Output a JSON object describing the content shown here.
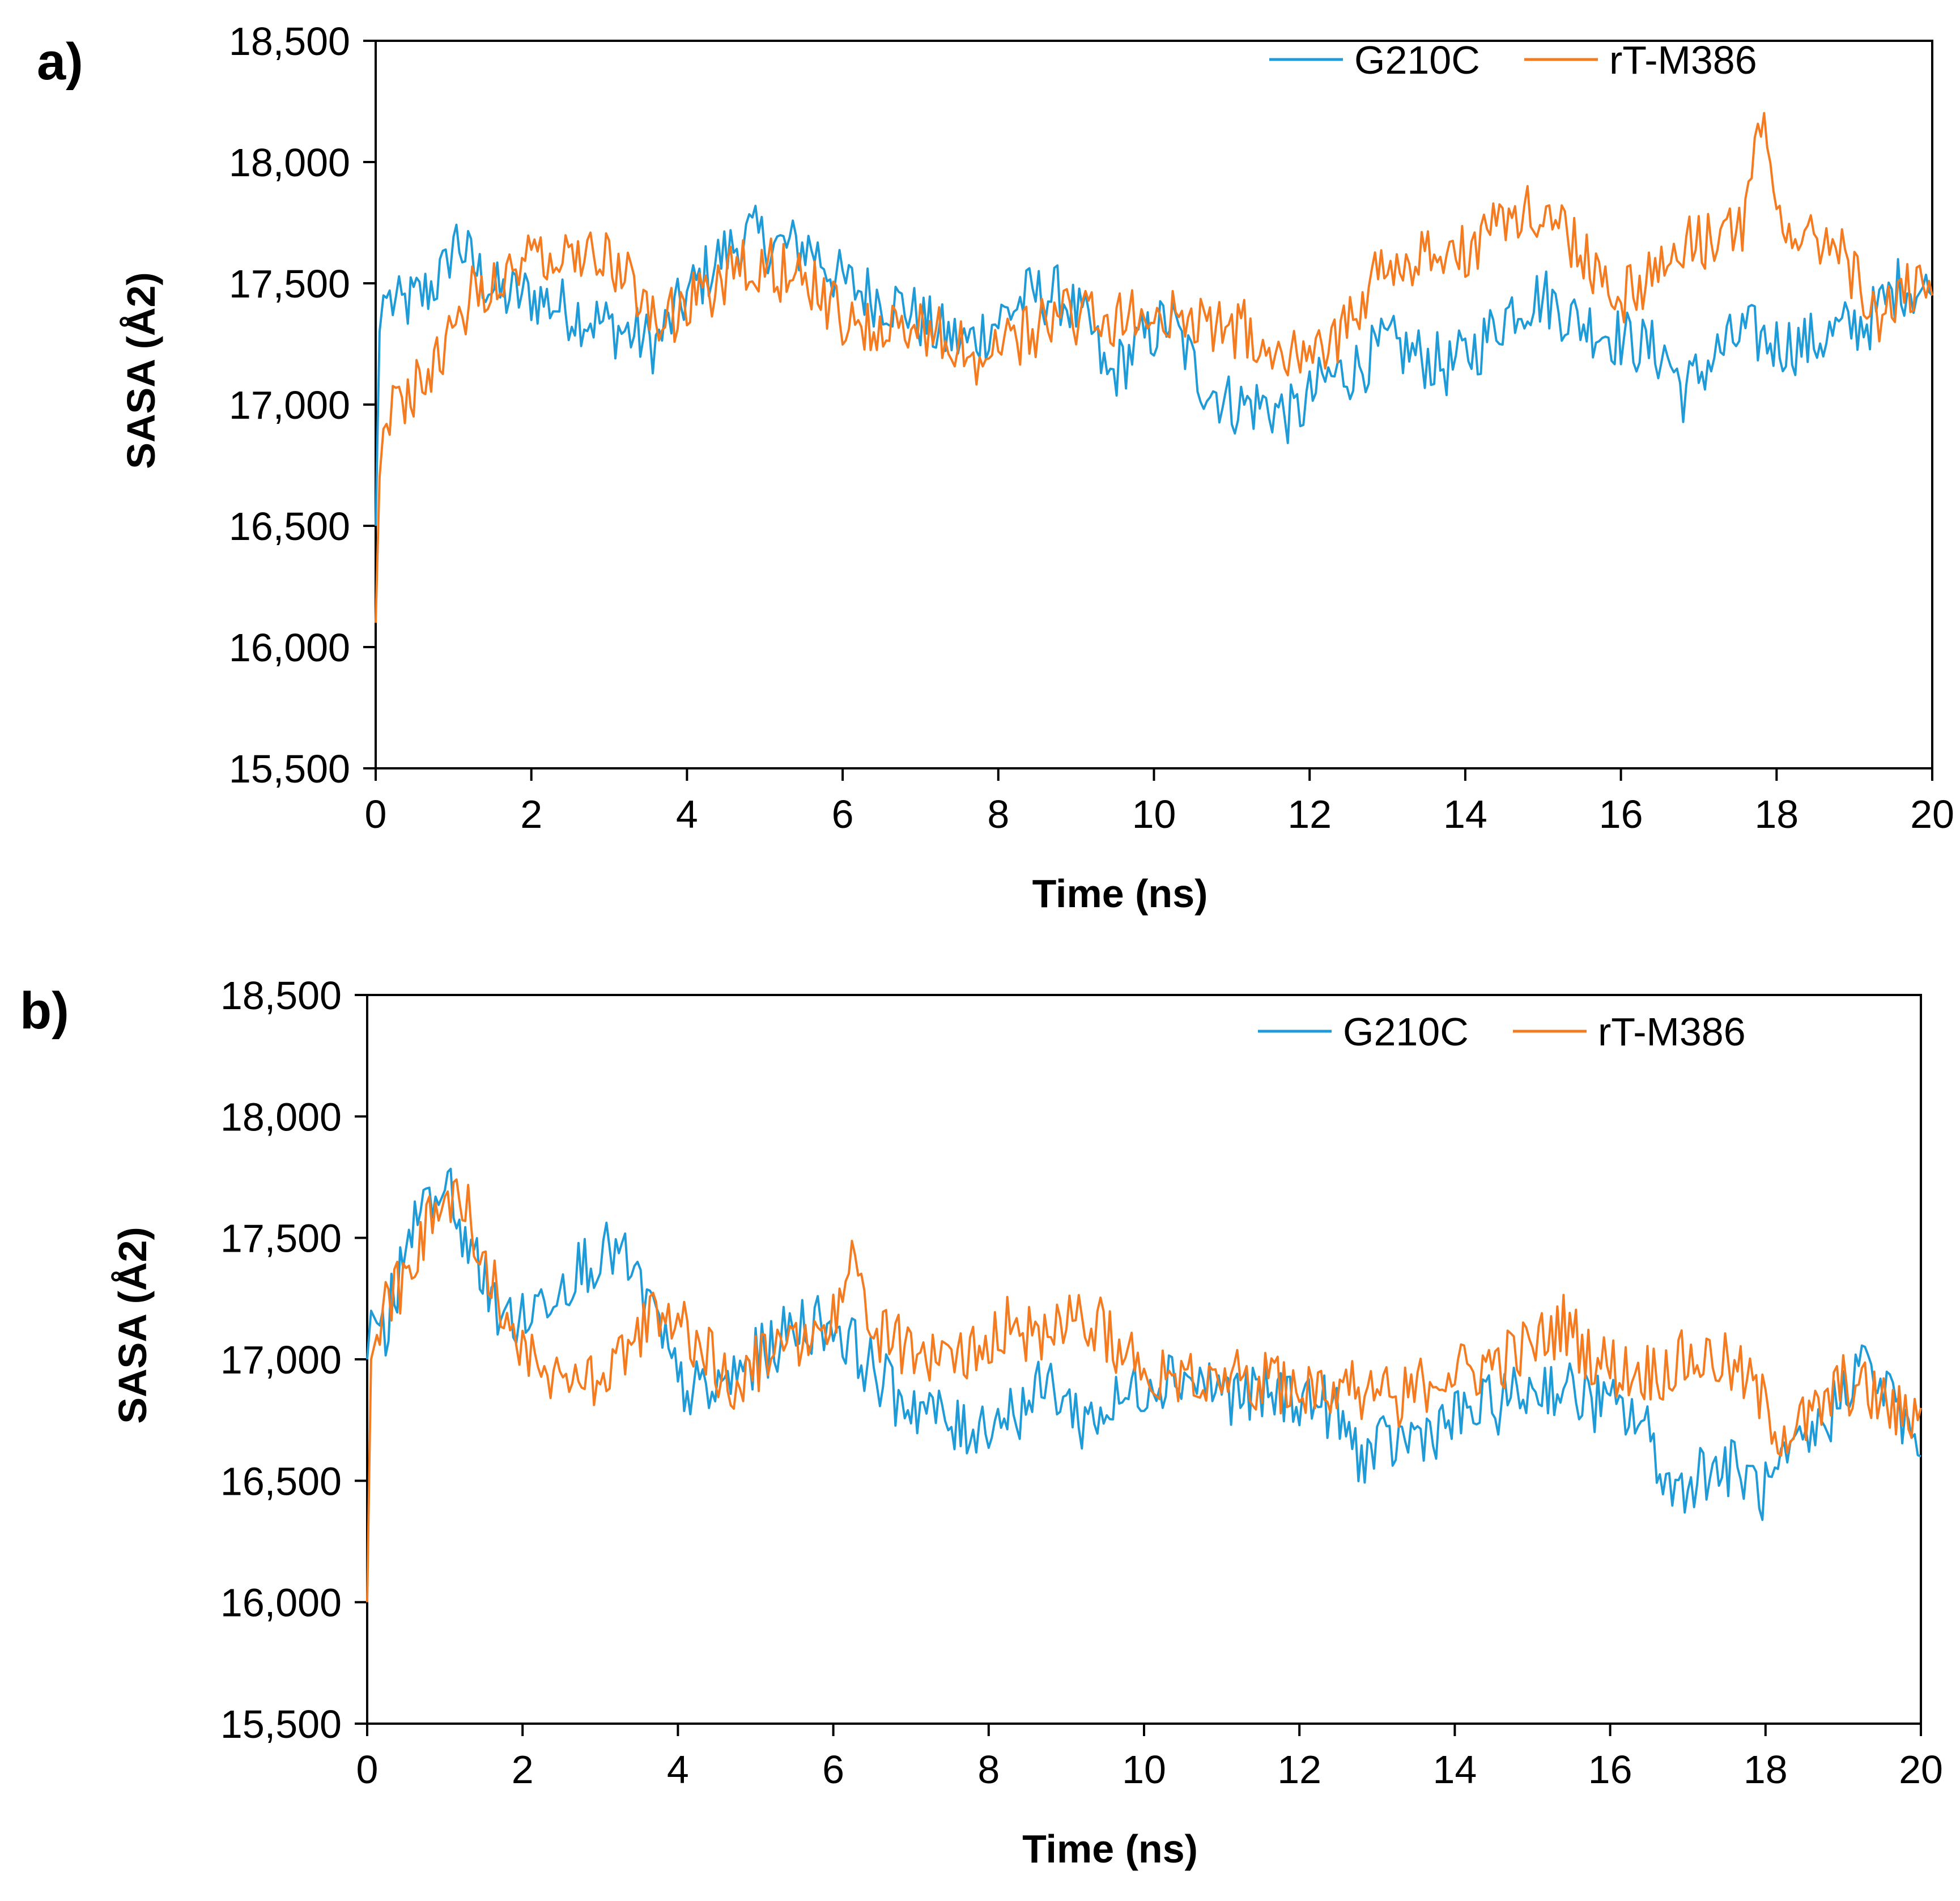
{
  "chart_data": [
    {
      "type": "line",
      "panel_label": "a)",
      "xlabel": "Time (ns)",
      "ylabel": "SASA  (Å2)",
      "xlim": [
        0,
        20
      ],
      "ylim": [
        15500,
        18500
      ],
      "xticks": [
        "0",
        "2",
        "4",
        "6",
        "8",
        "10",
        "12",
        "14",
        "16",
        "18",
        "20"
      ],
      "yticks": [
        "15,500",
        "16,000",
        "16,500",
        "17,000",
        "17,500",
        "18,000",
        "18,500"
      ],
      "legend_position": "top-right",
      "series": [
        {
          "name": "G210C",
          "color": "#1f9bd8",
          "x": [
            0,
            0.05,
            0.1,
            0.3,
            0.6,
            0.9,
            1.0,
            1.3,
            1.6,
            2.0,
            2.4,
            2.8,
            3.2,
            3.6,
            4.0,
            4.4,
            4.8,
            5.2,
            5.6,
            6.0,
            6.4,
            6.8,
            7.2,
            7.6,
            8.0,
            8.4,
            8.8,
            9.2,
            9.4,
            9.8,
            10.2,
            10.6,
            11.0,
            11.4,
            11.8,
            12.2,
            12.6,
            13.0,
            13.4,
            13.8,
            14.2,
            14.6,
            15.0,
            15.4,
            15.8,
            16.2,
            16.6,
            16.8,
            17.2,
            17.6,
            18.0,
            18.4,
            18.8,
            19.2,
            19.6,
            20.0
          ],
          "y": [
            16500,
            17300,
            17450,
            17400,
            17450,
            17550,
            17700,
            17550,
            17450,
            17450,
            17400,
            17350,
            17300,
            17250,
            17450,
            17600,
            17700,
            17650,
            17650,
            17500,
            17450,
            17400,
            17300,
            17250,
            17350,
            17450,
            17450,
            17300,
            17100,
            17250,
            17350,
            17100,
            17000,
            17000,
            16950,
            17100,
            17150,
            17250,
            17200,
            17150,
            17250,
            17400,
            17450,
            17350,
            17300,
            17250,
            17200,
            17050,
            17200,
            17300,
            17250,
            17250,
            17300,
            17350,
            17500,
            17450
          ]
        },
        {
          "name": "rT-M386",
          "color": "#f47b20",
          "x": [
            0,
            0.05,
            0.1,
            0.3,
            0.6,
            0.9,
            1.2,
            1.6,
            2.0,
            2.4,
            2.8,
            3.2,
            3.6,
            4.0,
            4.4,
            4.8,
            5.2,
            5.6,
            6.0,
            6.4,
            6.8,
            7.2,
            7.6,
            8.0,
            8.4,
            8.8,
            9.2,
            9.6,
            10.0,
            10.4,
            10.8,
            11.2,
            11.6,
            12.0,
            12.4,
            12.8,
            13.2,
            13.6,
            14.0,
            14.4,
            14.8,
            15.2,
            15.6,
            16.0,
            16.4,
            16.8,
            17.2,
            17.6,
            17.8,
            18.0,
            18.4,
            18.8,
            19.2,
            19.6,
            20.0
          ],
          "y": [
            16100,
            16700,
            16900,
            17000,
            17100,
            17200,
            17450,
            17550,
            17600,
            17650,
            17650,
            17550,
            17350,
            17400,
            17500,
            17600,
            17550,
            17500,
            17350,
            17300,
            17350,
            17300,
            17200,
            17200,
            17300,
            17350,
            17400,
            17350,
            17350,
            17350,
            17350,
            17300,
            17250,
            17250,
            17300,
            17500,
            17600,
            17600,
            17650,
            17750,
            17800,
            17750,
            17600,
            17450,
            17550,
            17650,
            17700,
            17750,
            18150,
            17800,
            17650,
            17700,
            17350,
            17450,
            17450
          ]
        }
      ]
    },
    {
      "type": "line",
      "panel_label": "b)",
      "xlabel": "Time (ns)",
      "ylabel": "SASA  (Å2)",
      "xlim": [
        0,
        20
      ],
      "ylim": [
        15500,
        18500
      ],
      "xticks": [
        "0",
        "2",
        "4",
        "6",
        "8",
        "10",
        "12",
        "14",
        "16",
        "18",
        "20"
      ],
      "yticks": [
        "15,500",
        "16,000",
        "16,500",
        "17,000",
        "17,500",
        "18,000",
        "18,500"
      ],
      "legend_position": "top-right",
      "series": [
        {
          "name": "G210C",
          "color": "#1f9bd8",
          "x": [
            0,
            0.05,
            0.2,
            0.5,
            0.8,
            1.0,
            1.3,
            1.6,
            2.0,
            2.4,
            2.8,
            3.2,
            3.6,
            4.0,
            4.4,
            4.8,
            5.2,
            5.6,
            6.0,
            6.4,
            6.8,
            7.2,
            7.6,
            8.0,
            8.4,
            8.8,
            9.2,
            9.6,
            10.0,
            10.4,
            10.8,
            11.2,
            11.6,
            12.0,
            12.4,
            12.8,
            13.2,
            13.6,
            14.0,
            14.4,
            14.8,
            15.2,
            15.6,
            16.0,
            16.4,
            16.8,
            17.2,
            17.6,
            18.0,
            18.4,
            18.8,
            19.2,
            19.6,
            20.0
          ],
          "y": [
            17000,
            17200,
            17100,
            17450,
            17650,
            17750,
            17450,
            17250,
            17150,
            17300,
            17400,
            17450,
            17250,
            16900,
            16850,
            16950,
            17050,
            17150,
            17150,
            17000,
            16850,
            16800,
            16700,
            16750,
            16800,
            16900,
            16750,
            16800,
            16900,
            16950,
            16900,
            16850,
            16850,
            16850,
            16800,
            16600,
            16650,
            16700,
            16750,
            16800,
            16850,
            16900,
            16850,
            16800,
            16750,
            16450,
            16550,
            16550,
            16450,
            16600,
            16750,
            17000,
            16850,
            16600
          ]
        },
        {
          "name": "rT-M386",
          "color": "#f47b20",
          "x": [
            0,
            0.05,
            0.2,
            0.5,
            0.8,
            1.0,
            1.3,
            1.6,
            2.0,
            2.4,
            2.8,
            3.2,
            3.6,
            4.0,
            4.4,
            4.8,
            5.2,
            5.6,
            6.0,
            6.2,
            6.6,
            7.0,
            7.4,
            7.8,
            8.2,
            8.6,
            9.0,
            9.4,
            9.8,
            10.2,
            10.6,
            11.0,
            11.4,
            11.8,
            12.2,
            12.6,
            13.0,
            13.4,
            13.8,
            14.2,
            14.6,
            15.0,
            15.4,
            15.8,
            16.2,
            16.6,
            17.0,
            17.4,
            17.8,
            18.2,
            18.6,
            19.0,
            19.4,
            19.8,
            20.0
          ],
          "y": [
            16000,
            17000,
            17200,
            17350,
            17550,
            17650,
            17600,
            17350,
            17050,
            16900,
            16900,
            17000,
            17150,
            17150,
            17000,
            16900,
            17050,
            17100,
            17150,
            17450,
            17100,
            17050,
            17000,
            17050,
            17150,
            17100,
            17150,
            17150,
            17000,
            16950,
            16950,
            16950,
            16900,
            16900,
            16900,
            16900,
            16850,
            16850,
            16950,
            16950,
            17000,
            17050,
            17150,
            17000,
            16950,
            16950,
            17000,
            17000,
            16900,
            16700,
            16750,
            16900,
            16850,
            16750,
            16800
          ]
        }
      ]
    }
  ]
}
